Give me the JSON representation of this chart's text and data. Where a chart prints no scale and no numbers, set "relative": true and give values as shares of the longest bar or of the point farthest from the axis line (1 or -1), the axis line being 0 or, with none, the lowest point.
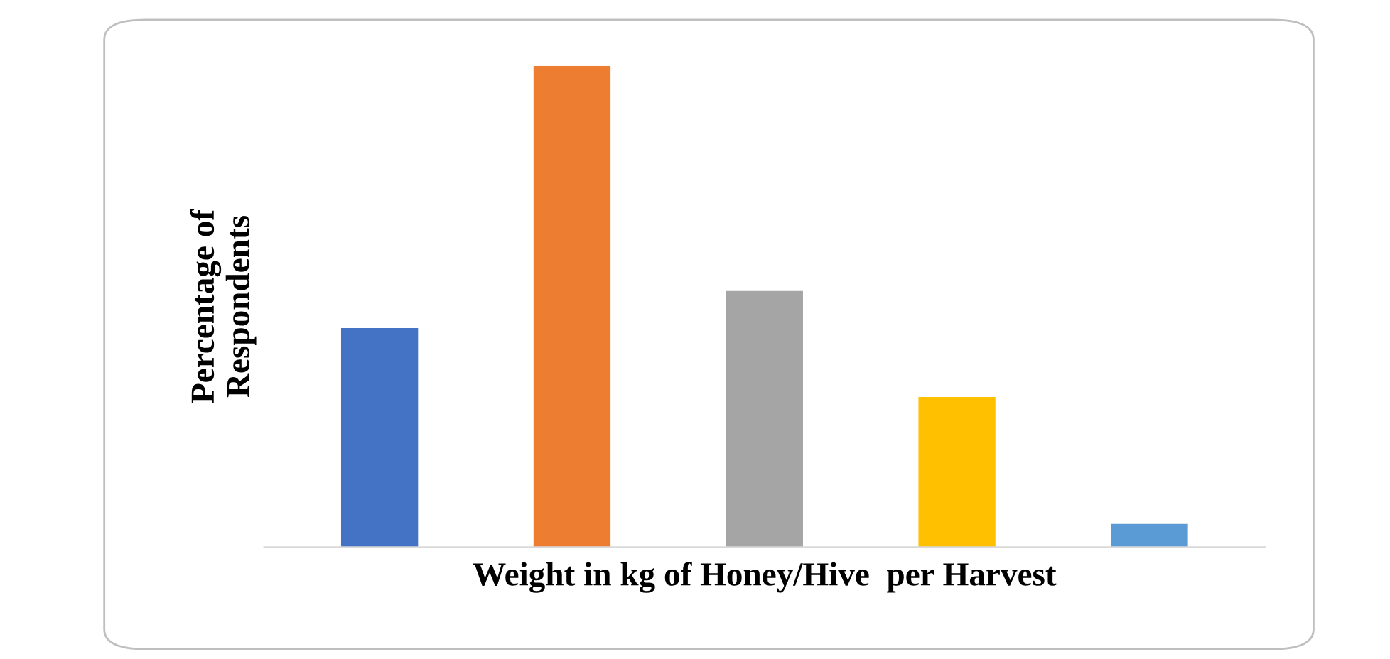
{
  "chart_data": {
    "type": "bar",
    "relative": true,
    "xlabel": "Weight in kg of Honey/Hive  per Harvest",
    "ylabel": "Percentage of\nRespondents",
    "categories": [
      null,
      null,
      null,
      null,
      null
    ],
    "values": [
      0.455,
      1,
      0.532,
      0.312,
      0.048
    ],
    "colors": [
      "#4472c4",
      "#ed7d31",
      "#a5a5a5",
      "#ffc000",
      "#5b9bd5"
    ],
    "grid": false,
    "legend": false
  }
}
